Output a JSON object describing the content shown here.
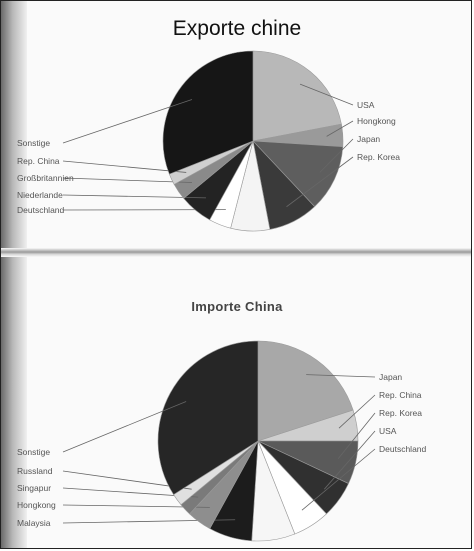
{
  "chart_data": [
    {
      "type": "pie",
      "title": "Exporte chine",
      "slices": [
        {
          "label": "USA",
          "value": 22,
          "color": "#b8b8b8"
        },
        {
          "label": "Hongkong",
          "value": 4,
          "color": "#9a9a9a"
        },
        {
          "label": "Japan",
          "value": 12,
          "color": "#5e5e5e"
        },
        {
          "label": "Rep. Korea",
          "value": 9,
          "color": "#3a3a3a"
        },
        {
          "label": "",
          "value": 7,
          "color": "#f4f4f4"
        },
        {
          "label": "Deutschland",
          "value": 4,
          "color": "#ffffff"
        },
        {
          "label": "Niederlande",
          "value": 6,
          "color": "#232323"
        },
        {
          "label": "Großbritannien",
          "value": 3,
          "color": "#8a8a8a"
        },
        {
          "label": "Rep. China",
          "value": 2,
          "color": "#cfcfcf"
        },
        {
          "label": "Sonstige",
          "value": 31,
          "color": "#161616"
        }
      ]
    },
    {
      "type": "pie",
      "title": "Importe China",
      "slices": [
        {
          "label": "Japan",
          "value": 20,
          "color": "#a8a8a8"
        },
        {
          "label": "Rep. China",
          "value": 5,
          "color": "#cfcfcf"
        },
        {
          "label": "Rep. Korea",
          "value": 7,
          "color": "#5a5a5a"
        },
        {
          "label": "USA",
          "value": 6,
          "color": "#303030"
        },
        {
          "label": "Deutschland",
          "value": 6,
          "color": "#ffffff"
        },
        {
          "label": "",
          "value": 7,
          "color": "#f6f6f6"
        },
        {
          "label": "Malaysia",
          "value": 7,
          "color": "#1c1c1c"
        },
        {
          "label": "Hongkong",
          "value": 4,
          "color": "#8e8e8e"
        },
        {
          "label": "Singapur",
          "value": 2,
          "color": "#7a7a7a"
        },
        {
          "label": "Russland",
          "value": 2,
          "color": "#e0e0e0"
        },
        {
          "label": "Sonstige",
          "value": 34,
          "color": "#262626"
        }
      ]
    }
  ]
}
